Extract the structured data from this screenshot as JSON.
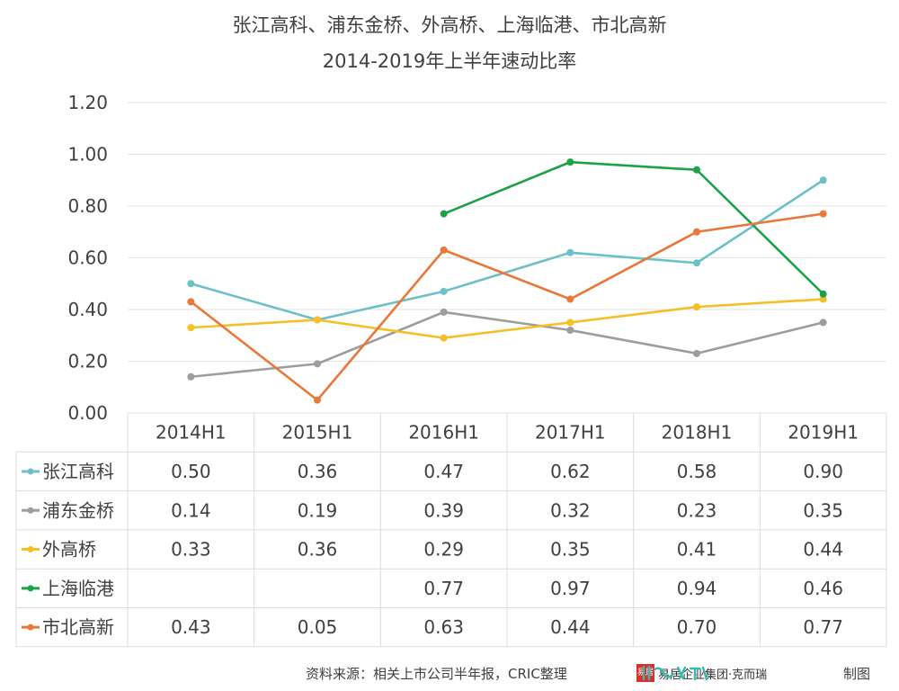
{
  "chart_data": {
    "type": "line",
    "title": "张江高科、浦东金桥、外高桥、上海临港、市北高新",
    "subtitle": "2014-2019年上半年速动比率",
    "categories": [
      "2014H1",
      "2015H1",
      "2016H1",
      "2017H1",
      "2018H1",
      "2019H1"
    ],
    "ylim": [
      0,
      1.2
    ],
    "yticks": [
      "0.00",
      "0.20",
      "0.40",
      "0.60",
      "0.80",
      "1.00",
      "1.20"
    ],
    "grid": true,
    "legend": "data-table",
    "series": [
      {
        "name": "张江高科",
        "color": "#6cc0c7",
        "values": [
          0.5,
          0.36,
          0.47,
          0.62,
          0.58,
          0.9
        ],
        "labels": [
          "0.50",
          "0.36",
          "0.47",
          "0.62",
          "0.58",
          "0.90"
        ]
      },
      {
        "name": "浦东金桥",
        "color": "#9d9d9d",
        "values": [
          0.14,
          0.19,
          0.39,
          0.32,
          0.23,
          0.35
        ],
        "labels": [
          "0.14",
          "0.19",
          "0.39",
          "0.32",
          "0.23",
          "0.35"
        ]
      },
      {
        "name": "外高桥",
        "color": "#f6bf26",
        "values": [
          0.33,
          0.36,
          0.29,
          0.35,
          0.41,
          0.44
        ],
        "labels": [
          "0.33",
          "0.36",
          "0.29",
          "0.35",
          "0.41",
          "0.44"
        ]
      },
      {
        "name": "上海临港",
        "color": "#1ba346",
        "values": [
          null,
          null,
          0.77,
          0.97,
          0.94,
          0.46
        ],
        "labels": [
          "",
          "",
          "0.77",
          "0.97",
          "0.94",
          "0.46"
        ]
      },
      {
        "name": "市北高新",
        "color": "#e8793a",
        "values": [
          0.43,
          0.05,
          0.63,
          0.44,
          0.7,
          0.77
        ],
        "labels": [
          "0.43",
          "0.05",
          "0.63",
          "0.44",
          "0.70",
          "0.77"
        ]
      }
    ]
  },
  "footer": {
    "source": "资料来源：相关上市公司半年报，CRIC整理",
    "brand": "易居企业集团·克而瑞",
    "made": "制图",
    "seal_icon": "seal-icon",
    "brand_mark": "brand-logo-mark"
  }
}
